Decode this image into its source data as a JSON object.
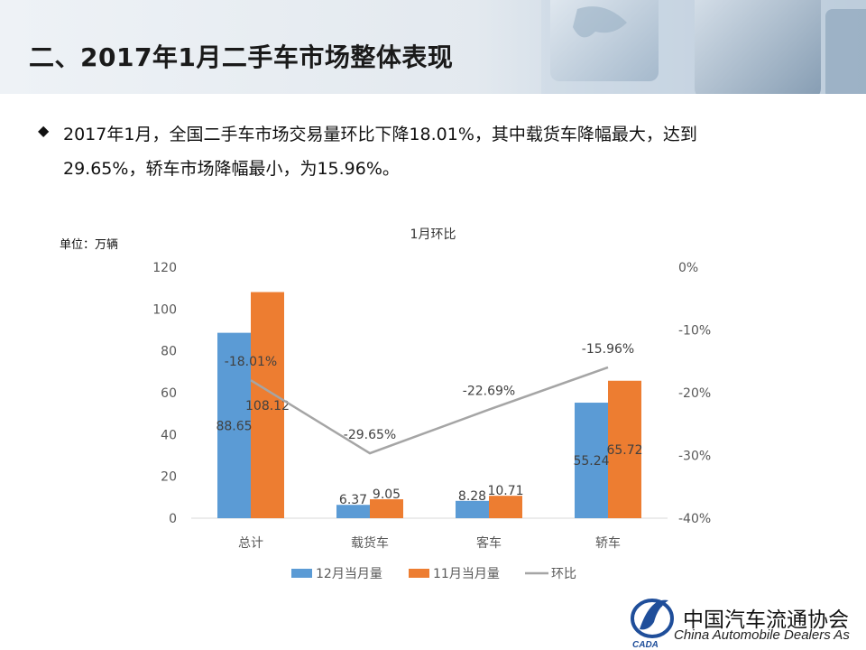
{
  "slide": {
    "title": "二、2017年1月二手车市场整体表现",
    "bullet_line1": "2017年1月，全国二手车市场交易量环比下降18.01%，其中载货车降幅最大，达到",
    "bullet_line2": "29.65%，轿车市场降幅最小，为15.96%。",
    "unit_label": "单位：万辆"
  },
  "logo": {
    "cn_name": "中国汽车流通协会",
    "en_name": "China Automobile Dealers As",
    "mark_text": "CADA"
  },
  "colors": {
    "series_dec": "#5b9bd5",
    "series_nov": "#ed7d31",
    "series_mom": "#a5a5a5",
    "axis_text": "#595959",
    "gridline": "#d9d9d9"
  },
  "chart_data": {
    "type": "bar",
    "title": "1月环比",
    "categories": [
      "总计",
      "载货车",
      "客车",
      "轿车"
    ],
    "series": [
      {
        "name": "12月当月量",
        "type": "bar",
        "axis": "left",
        "values": [
          88.65,
          6.37,
          8.28,
          55.24
        ],
        "labels": [
          "88.65",
          "6.37",
          "8.28",
          "55.24"
        ]
      },
      {
        "name": "11月当月量",
        "type": "bar",
        "axis": "left",
        "values": [
          108.12,
          9.05,
          10.71,
          65.72
        ],
        "labels": [
          "108.12",
          "9.05",
          "10.71",
          "65.72"
        ]
      },
      {
        "name": "环比",
        "type": "line",
        "axis": "right",
        "values": [
          -18.01,
          -29.65,
          -22.69,
          -15.96
        ],
        "labels": [
          "-18.01%",
          "-29.65%",
          "-22.69%",
          "-15.96%"
        ]
      }
    ],
    "y_left": {
      "ylim": [
        0,
        120
      ],
      "ticks": [
        "0",
        "20",
        "40",
        "60",
        "80",
        "100",
        "120"
      ]
    },
    "y_right": {
      "ylim": [
        -40,
        0
      ],
      "ticks": [
        "-40%",
        "-30%",
        "-20%",
        "-10%",
        "0%"
      ]
    },
    "grid": false,
    "legend": "bottom"
  }
}
